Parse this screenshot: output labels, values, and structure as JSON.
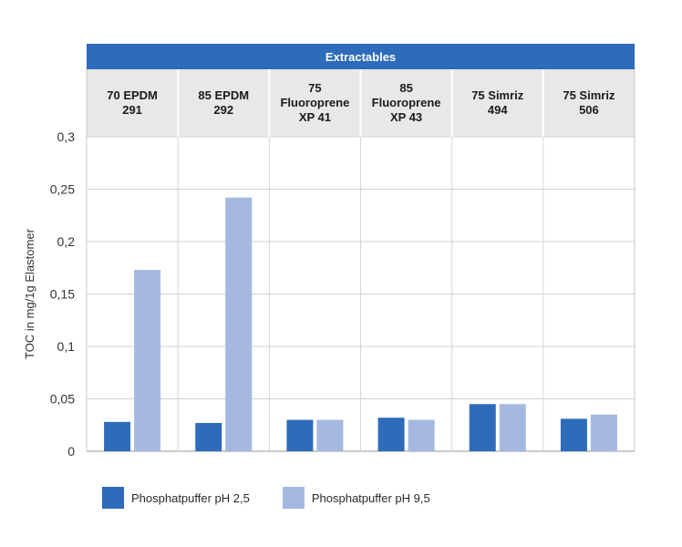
{
  "chart_data": {
    "type": "bar",
    "title": "Extractables",
    "categories": [
      [
        "70 EPDM",
        "291"
      ],
      [
        "85 EPDM",
        "292"
      ],
      [
        "75",
        "Fluoroprene",
        "XP 41"
      ],
      [
        "85",
        "Fluoroprene",
        "XP 43"
      ],
      [
        "75 Simriz",
        "494"
      ],
      [
        "75 Simriz",
        "506"
      ]
    ],
    "series": [
      {
        "name": "Phosphatpuffer pH 2,5",
        "color": "#2e6bbb",
        "values": [
          0.028,
          0.027,
          0.03,
          0.032,
          0.045,
          0.031
        ]
      },
      {
        "name": "Phosphatpuffer pH 9,5",
        "color": "#a4b8e0",
        "values": [
          0.173,
          0.242,
          0.03,
          0.03,
          0.045,
          0.035
        ]
      }
    ],
    "ylabel": "TOC in mg/1g Elastomer",
    "xlabel": "",
    "ylim": [
      0,
      0.3
    ],
    "yticks": [
      "0",
      "0,05",
      "0,1",
      "0,15",
      "0,2",
      "0,25",
      "0,3"
    ],
    "grid": true,
    "legend_position": "bottom-left"
  },
  "colors": {
    "header_bar": "#2e6bbb",
    "category_band": "#e8e8e8",
    "grid": "#d0d0d0"
  }
}
